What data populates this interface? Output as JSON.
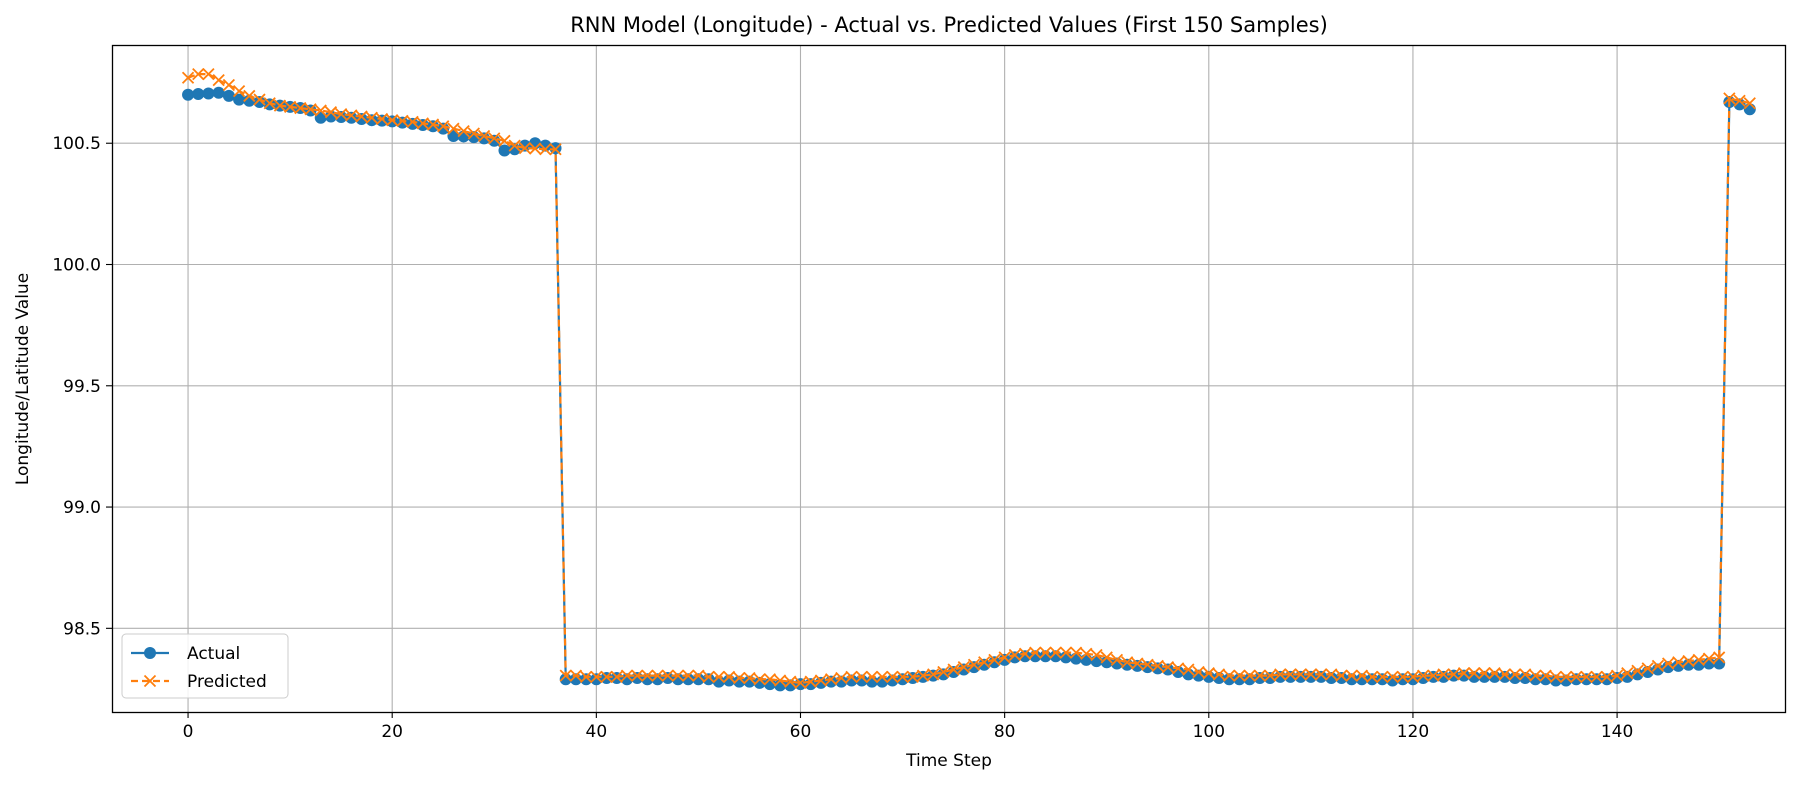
{
  "chart_data": {
    "type": "line",
    "title": "RNN Model (Longitude) - Actual vs. Predicted Values (First 150 Samples)",
    "xlabel": "Time Step",
    "ylabel": "Longitude/Latitude Value",
    "xlim": [
      -7.45,
      156.45
    ],
    "ylim": [
      98.155,
      100.905
    ],
    "xticks": [
      0,
      20,
      40,
      60,
      80,
      100,
      120,
      140
    ],
    "yticks": [
      98.5,
      99.0,
      99.5,
      100.0,
      100.5
    ],
    "xtick_labels": [
      "0",
      "20",
      "40",
      "60",
      "80",
      "100",
      "120",
      "140"
    ],
    "ytick_labels": [
      "98.5",
      "99.0",
      "99.5",
      "100.0",
      "100.5"
    ],
    "grid": true,
    "legend_position": "lower-left",
    "series": [
      {
        "name": "Actual",
        "color": "#1f77b4",
        "marker": "circle",
        "linestyle": "solid",
        "values": [
          100.7,
          100.703,
          100.705,
          100.708,
          100.695,
          100.68,
          100.675,
          100.67,
          100.66,
          100.655,
          100.65,
          100.645,
          100.635,
          100.605,
          100.61,
          100.608,
          100.605,
          100.6,
          100.595,
          100.593,
          100.59,
          100.585,
          100.58,
          100.575,
          100.57,
          100.56,
          100.53,
          100.528,
          100.525,
          100.52,
          100.51,
          100.47,
          100.475,
          100.49,
          100.5,
          100.49,
          100.48,
          98.29,
          98.29,
          98.29,
          98.29,
          98.295,
          98.295,
          98.29,
          98.295,
          98.29,
          98.29,
          98.295,
          98.29,
          98.29,
          98.29,
          98.29,
          98.28,
          98.285,
          98.28,
          98.28,
          98.275,
          98.27,
          98.265,
          98.265,
          98.27,
          98.27,
          98.275,
          98.28,
          98.28,
          98.285,
          98.285,
          98.28,
          98.28,
          98.285,
          98.29,
          98.295,
          98.3,
          98.305,
          98.31,
          98.32,
          98.33,
          98.34,
          98.35,
          98.36,
          98.37,
          98.38,
          98.385,
          98.385,
          98.385,
          98.385,
          98.38,
          98.375,
          98.37,
          98.365,
          98.36,
          98.355,
          98.35,
          98.345,
          98.34,
          98.335,
          98.33,
          98.32,
          98.31,
          98.305,
          98.3,
          98.295,
          98.29,
          98.29,
          98.29,
          98.295,
          98.295,
          98.3,
          98.3,
          98.3,
          98.3,
          98.3,
          98.295,
          98.295,
          98.29,
          98.29,
          98.29,
          98.29,
          98.285,
          98.29,
          98.29,
          98.295,
          98.3,
          98.3,
          98.305,
          98.305,
          98.3,
          98.3,
          98.3,
          98.3,
          98.295,
          98.295,
          98.29,
          98.29,
          98.285,
          98.285,
          98.29,
          98.29,
          98.29,
          98.29,
          98.295,
          98.3,
          98.31,
          98.32,
          98.33,
          98.34,
          98.345,
          98.35,
          98.35,
          98.355,
          98.355,
          100.67,
          100.66,
          100.64
        ]
      },
      {
        "name": "Predicted",
        "color": "#ff7f0e",
        "marker": "x",
        "linestyle": "dashed",
        "values": [
          100.77,
          100.785,
          100.785,
          100.76,
          100.74,
          100.715,
          100.695,
          100.68,
          100.665,
          100.655,
          100.65,
          100.645,
          100.64,
          100.635,
          100.628,
          100.62,
          100.615,
          100.61,
          100.605,
          100.6,
          100.595,
          100.592,
          100.588,
          100.582,
          100.577,
          100.57,
          100.56,
          100.55,
          100.54,
          100.53,
          100.52,
          100.51,
          100.49,
          100.48,
          100.478,
          100.475,
          100.475,
          98.305,
          98.305,
          98.3,
          98.3,
          98.3,
          98.3,
          98.305,
          98.305,
          98.305,
          98.305,
          98.305,
          98.305,
          98.305,
          98.305,
          98.3,
          98.3,
          98.3,
          98.295,
          98.295,
          98.29,
          98.29,
          98.285,
          98.28,
          98.275,
          98.28,
          98.285,
          98.29,
          98.295,
          98.3,
          98.3,
          98.3,
          98.3,
          98.3,
          98.3,
          98.3,
          98.305,
          98.31,
          98.32,
          98.33,
          98.34,
          98.35,
          98.36,
          98.37,
          98.38,
          98.39,
          98.395,
          98.4,
          98.4,
          98.4,
          98.4,
          98.4,
          98.395,
          98.39,
          98.38,
          98.37,
          98.36,
          98.355,
          98.35,
          98.345,
          98.34,
          98.335,
          98.33,
          98.32,
          98.315,
          98.31,
          98.305,
          98.305,
          98.305,
          98.305,
          98.305,
          98.31,
          98.31,
          98.31,
          98.31,
          98.31,
          98.31,
          98.305,
          98.305,
          98.305,
          98.3,
          98.3,
          98.3,
          98.3,
          98.3,
          98.305,
          98.305,
          98.31,
          98.31,
          98.315,
          98.315,
          98.315,
          98.315,
          98.31,
          98.31,
          98.31,
          98.305,
          98.305,
          98.3,
          98.3,
          98.3,
          98.3,
          98.3,
          98.3,
          98.305,
          98.315,
          98.325,
          98.335,
          98.345,
          98.355,
          98.36,
          98.365,
          98.37,
          98.375,
          98.38,
          100.685,
          100.675,
          100.665
        ]
      }
    ]
  }
}
